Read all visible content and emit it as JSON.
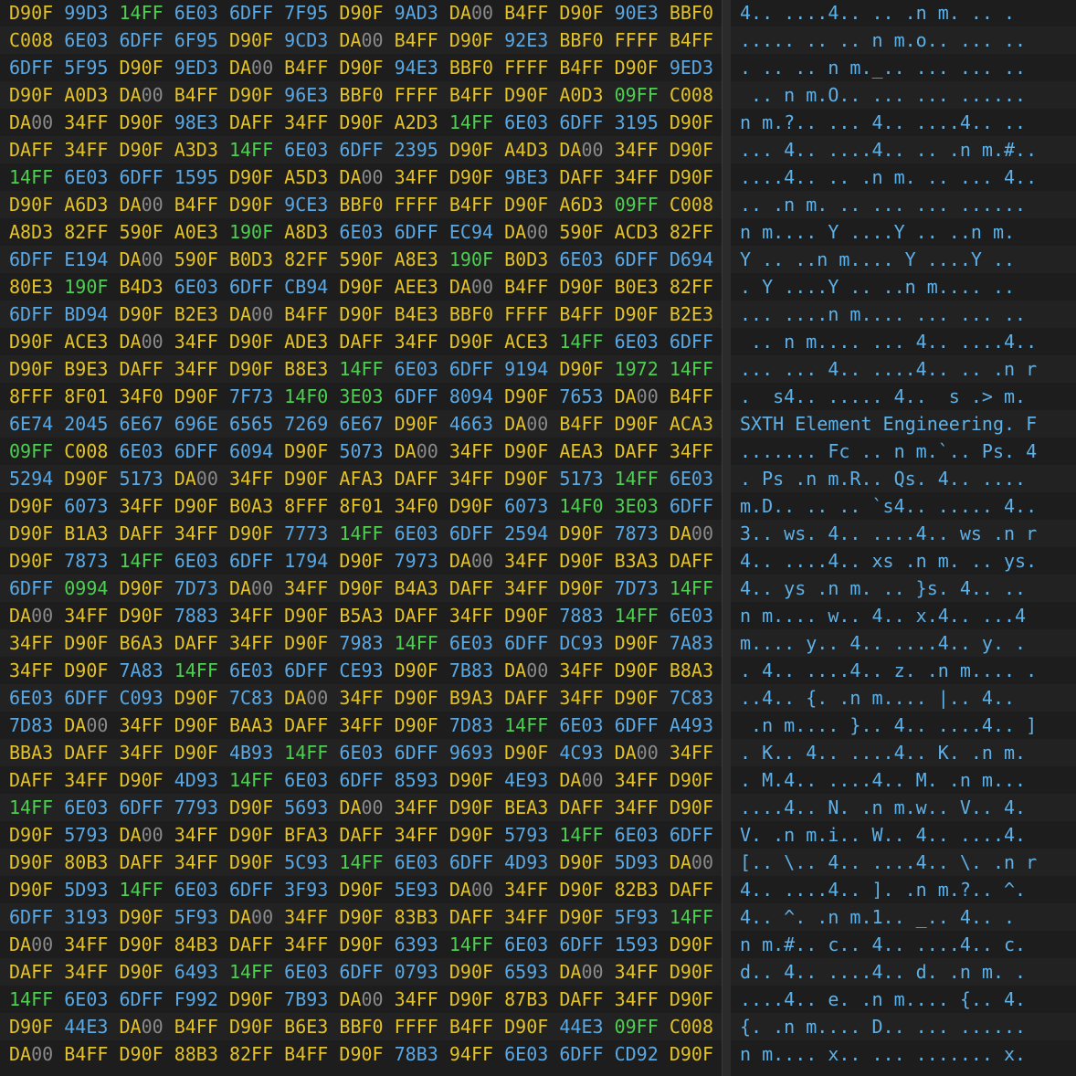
{
  "hex_rows": [
    "D90F 99D3 14FF 6E03 6DFF 7F95 D90F 9AD3 DA00 B4FF D90F 90E3 BBF0",
    "C008 6E03 6DFF 6F95 D90F 9CD3 DA00 B4FF D90F 92E3 BBF0 FFFF B4FF",
    "6DFF 5F95 D90F 9ED3 DA00 B4FF D90F 94E3 BBF0 FFFF B4FF D90F 9ED3",
    "D90F A0D3 DA00 B4FF D90F 96E3 BBF0 FFFF B4FF D90F A0D3 09FF C008",
    "DA00 34FF D90F 98E3 DAFF 34FF D90F A2D3 14FF 6E03 6DFF 3195 D90F",
    "DAFF 34FF D90F A3D3 14FF 6E03 6DFF 2395 D90F A4D3 DA00 34FF D90F",
    "14FF 6E03 6DFF 1595 D90F A5D3 DA00 34FF D90F 9BE3 DAFF 34FF D90F",
    "D90F A6D3 DA00 B4FF D90F 9CE3 BBF0 FFFF B4FF D90F A6D3 09FF C008",
    "A8D3 82FF 590F A0E3 190F A8D3 6E03 6DFF EC94 DA00 590F ACD3 82FF",
    "6DFF E194 DA00 590F B0D3 82FF 590F A8E3 190F B0D3 6E03 6DFF D694",
    "80E3 190F B4D3 6E03 6DFF CB94 D90F AEE3 DA00 B4FF D90F B0E3 82FF",
    "6DFF BD94 D90F B2E3 DA00 B4FF D90F B4E3 BBF0 FFFF B4FF D90F B2E3",
    "D90F ACE3 DA00 34FF D90F ADE3 DAFF 34FF D90F ACE3 14FF 6E03 6DFF",
    "D90F B9E3 DAFF 34FF D90F B8E3 14FF 6E03 6DFF 9194 D90F 1972 14FF",
    "8FFF 8F01 34F0 D90F 7F73 14F0 3E03 6DFF 8094 D90F 7653 DA00 B4FF",
    "6E74 2045 6E67 696E 6565 7269 6E67 D90F 4663 DA00 B4FF D90F ACA3",
    "09FF C008 6E03 6DFF 6094 D90F 5073 DA00 34FF D90F AEA3 DAFF 34FF",
    "5294 D90F 5173 DA00 34FF D90F AFA3 DAFF 34FF D90F 5173 14FF 6E03",
    "D90F 6073 34FF D90F B0A3 8FFF 8F01 34F0 D90F 6073 14F0 3E03 6DFF",
    "D90F B1A3 DAFF 34FF D90F 7773 14FF 6E03 6DFF 2594 D90F 7873 DA00",
    "D90F 7873 14FF 6E03 6DFF 1794 D90F 7973 DA00 34FF D90F B3A3 DAFF",
    "6DFF 0994 D90F 7D73 DA00 34FF D90F B4A3 DAFF 34FF D90F 7D73 14FF",
    "DA00 34FF D90F 7883 34FF D90F B5A3 DAFF 34FF D90F 7883 14FF 6E03",
    "34FF D90F B6A3 DAFF 34FF D90F 7983 14FF 6E03 6DFF DC93 D90F 7A83",
    "34FF D90F 7A83 14FF 6E03 6DFF CE93 D90F 7B83 DA00 34FF D90F B8A3",
    "6E03 6DFF C093 D90F 7C83 DA00 34FF D90F B9A3 DAFF 34FF D90F 7C83",
    "7D83 DA00 34FF D90F BAA3 DAFF 34FF D90F 7D83 14FF 6E03 6DFF A493",
    "BBA3 DAFF 34FF D90F 4B93 14FF 6E03 6DFF 9693 D90F 4C93 DA00 34FF",
    "DAFF 34FF D90F 4D93 14FF 6E03 6DFF 8593 D90F 4E93 DA00 34FF D90F",
    "14FF 6E03 6DFF 7793 D90F 5693 DA00 34FF D90F BEA3 DAFF 34FF D90F",
    "D90F 5793 DA00 34FF D90F BFA3 DAFF 34FF D90F 5793 14FF 6E03 6DFF",
    "D90F 80B3 DAFF 34FF D90F 5C93 14FF 6E03 6DFF 4D93 D90F 5D93 DA00",
    "D90F 5D93 14FF 6E03 6DFF 3F93 D90F 5E93 DA00 34FF D90F 82B3 DAFF",
    "6DFF 3193 D90F 5F93 DA00 34FF D90F 83B3 DAFF 34FF D90F 5F93 14FF",
    "DA00 34FF D90F 84B3 DAFF 34FF D90F 6393 14FF 6E03 6DFF 1593 D90F",
    "DAFF 34FF D90F 6493 14FF 6E03 6DFF 0793 D90F 6593 DA00 34FF D90F",
    "14FF 6E03 6DFF F992 D90F 7B93 DA00 34FF D90F 87B3 DAFF 34FF D90F",
    "D90F 44E3 DA00 B4FF D90F B6E3 BBF0 FFFF B4FF D90F 44E3 09FF C008",
    "DA00 B4FF D90F 88B3 82FF B4FF D90F 78B3 94FF 6E03 6DFF CD92 D90F"
  ],
  "ascii_rows": [
    "4.. ....4.. .. .n m. .. .",
    "..... .. .. n m.o.. ... ..",
    ". .. .. n m._.. ... ... ..",
    " .. n m.O.. ... ... ......",
    "n m.?.. ... 4.. ....4.. ..",
    "... 4.. ....4.. .. .n m.#..",
    "....4.. .. .n m. .. ... 4..",
    ".. .n m. .. ... ... ......",
    "n m.... Y ....Y .. ..n m.",
    "Y .. ..n m.... Y ....Y ..",
    ". Y ....Y .. ..n m.... ..",
    "... ....n m.... ... ... ..",
    " .. n m.... ... 4.. ....4..",
    "... ... 4.. ....4.. .. .n r",
    ".  s4.. ..... 4..  s .> m.",
    "SXTH Element Engineering. F",
    "....... Fc .. n m.`.. Ps. 4",
    ". Ps .n m.R.. Qs. 4.. ....",
    "m.D.. .. .. `s4.. ..... 4..",
    "3.. ws. 4.. ....4.. ws .n r",
    "4.. ....4.. xs .n m. .. ys.",
    "4.. ys .n m. .. }s. 4.. ..",
    "n m.... w.. 4.. x.4.. ...4",
    "m.... y.. 4.. ....4.. y. .",
    ". 4.. ....4.. z. .n m.... .",
    "..4.. {. .n m.... |.. 4..",
    " .n m.... }.. 4.. ....4.. ]",
    ". K.. 4.. ....4.. K. .n m.",
    ". M.4.. ....4.. M. .n m...",
    "....4.. N. .n m.w.. V.. 4.",
    "V. .n m.i.. W.. 4.. ....4.",
    "[.. \\.. 4.. ....4.. \\. .n r",
    "4.. ....4.. ]. .n m.?.. ^.",
    "4.. ^. .n m.1.. _.. 4.. .",
    "n m.#.. c.. 4.. ....4.. c.",
    "d.. 4.. ....4.. d. .n m. .",
    "....4.. e. .n m.... {.. 4.",
    "{. .n m.... D.. ... ......",
    "n m.... x.. ... ....... x."
  ]
}
